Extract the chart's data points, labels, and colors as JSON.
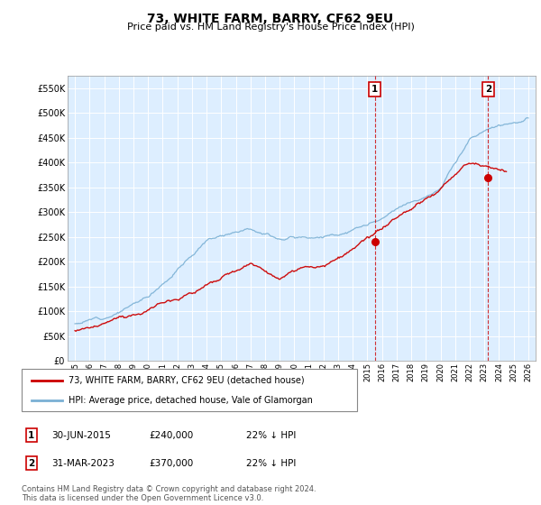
{
  "title": "73, WHITE FARM, BARRY, CF62 9EU",
  "subtitle": "Price paid vs. HM Land Registry's House Price Index (HPI)",
  "legend_line1": "73, WHITE FARM, BARRY, CF62 9EU (detached house)",
  "legend_line2": "HPI: Average price, detached house, Vale of Glamorgan",
  "annotation1": {
    "label": "1",
    "date": "30-JUN-2015",
    "price": "£240,000",
    "hpi_note": "22% ↓ HPI",
    "year": 2015.5,
    "value": 240000
  },
  "annotation2": {
    "label": "2",
    "date": "31-MAR-2023",
    "price": "£370,000",
    "hpi_note": "22% ↓ HPI",
    "year": 2023.25,
    "value": 370000
  },
  "footer": "Contains HM Land Registry data © Crown copyright and database right 2024.\nThis data is licensed under the Open Government Licence v3.0.",
  "ylim": [
    0,
    575000
  ],
  "yticks": [
    0,
    50000,
    100000,
    150000,
    200000,
    250000,
    300000,
    350000,
    400000,
    450000,
    500000,
    550000
  ],
  "xlim_start": 1994.5,
  "xlim_end": 2026.5,
  "xtick_years": [
    1995,
    1996,
    1997,
    1998,
    1999,
    2000,
    2001,
    2002,
    2003,
    2004,
    2005,
    2006,
    2007,
    2008,
    2009,
    2010,
    2011,
    2012,
    2013,
    2014,
    2015,
    2016,
    2017,
    2018,
    2019,
    2020,
    2021,
    2022,
    2023,
    2024,
    2025,
    2026
  ],
  "red_color": "#cc0000",
  "blue_color": "#7ab0d4",
  "bg_color": "#ddeeff",
  "grid_color": "#ffffff",
  "marker_box_color": "#cc0000",
  "title_fontsize": 10,
  "subtitle_fontsize": 8
}
